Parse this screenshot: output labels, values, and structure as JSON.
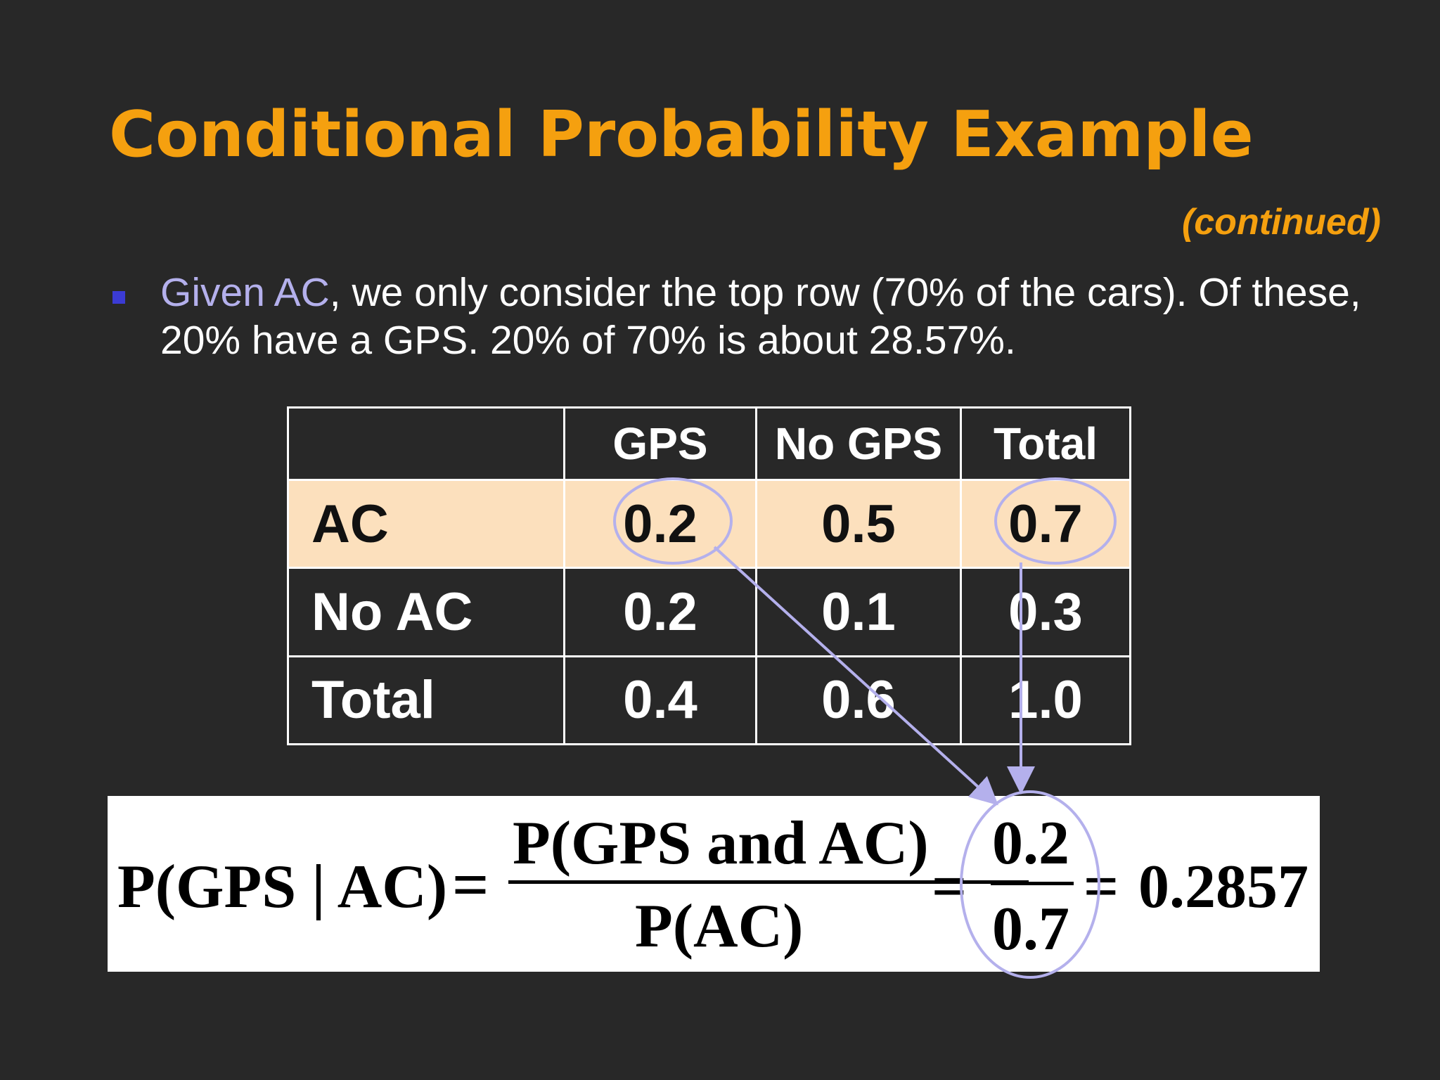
{
  "slide": {
    "title": "Conditional Probability Example",
    "subtitle": "(continued)",
    "bullet": {
      "highlight": "Given AC",
      "text": ", we only consider the top row (70% of the cars). Of these, 20% have a GPS.  20% of 70% is about 28.57%."
    }
  },
  "table": {
    "headers": [
      "",
      "GPS",
      "No GPS",
      "Total"
    ],
    "rows": [
      {
        "label": "AC",
        "cells": [
          "0.2",
          "0.5",
          "0.7"
        ]
      },
      {
        "label": "No AC",
        "cells": [
          "0.2",
          "0.1",
          "0.3"
        ]
      },
      {
        "label": "Total",
        "cells": [
          "0.4",
          "0.6",
          "1.0"
        ]
      }
    ]
  },
  "equation": {
    "lhs": "P(GPS | AC)",
    "equals": "=",
    "numerator": "P(GPS and AC)",
    "denominator": "P(AC)",
    "num_value": "0.2",
    "den_value": "0.7",
    "result": "0.2857"
  },
  "colors": {
    "background": "#282828",
    "title": "#F5A00F",
    "highlight_text": "#B4B0EC",
    "bullet": "#3B3BD4",
    "ac_row_fill": "#FCE0BD",
    "annotation": "#B4B0EC"
  }
}
